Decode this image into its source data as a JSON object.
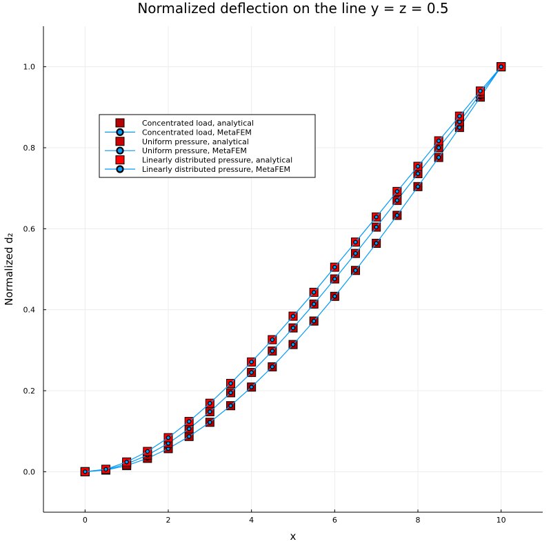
{
  "chart_data": {
    "type": "scatter",
    "title": "Normalized deflection on the line y = z = 0.5",
    "xlabel": "x",
    "ylabel": "Normalized d₂",
    "xlim": [
      -1,
      11
    ],
    "ylim": [
      -0.1,
      1.1
    ],
    "x_ticks": [
      0,
      2,
      4,
      6,
      8,
      10
    ],
    "y_ticks": [
      0.0,
      0.2,
      0.4,
      0.6,
      0.8,
      1.0
    ],
    "x_tick_labels": [
      "0",
      "2",
      "4",
      "6",
      "8",
      "10"
    ],
    "y_tick_labels": [
      "0.0",
      "0.2",
      "0.4",
      "0.6",
      "0.8",
      "1.0"
    ],
    "grid": true,
    "legend_position": "top-left",
    "x": [
      0,
      0.5,
      1,
      1.5,
      2,
      2.5,
      3,
      3.5,
      4,
      4.5,
      5,
      5.5,
      6,
      6.5,
      7,
      7.5,
      8,
      8.5,
      9,
      9.5,
      10
    ],
    "series": [
      {
        "name": "Concentrated load, analytical",
        "marker": "square",
        "color": "#b40000",
        "line": false,
        "values": [
          0.0,
          0.004,
          0.015,
          0.033,
          0.057,
          0.087,
          0.122,
          0.163,
          0.209,
          0.259,
          0.314,
          0.372,
          0.433,
          0.497,
          0.564,
          0.633,
          0.704,
          0.776,
          0.85,
          0.925,
          1.0
        ]
      },
      {
        "name": "Concentrated load, MetaFEM",
        "marker": "circle",
        "color": "#009af9",
        "line": true,
        "values": [
          0.0,
          0.004,
          0.015,
          0.033,
          0.057,
          0.087,
          0.122,
          0.163,
          0.209,
          0.259,
          0.314,
          0.372,
          0.433,
          0.497,
          0.564,
          0.633,
          0.704,
          0.776,
          0.85,
          0.925,
          1.0
        ]
      },
      {
        "name": "Uniform pressure, analytical",
        "marker": "square",
        "color": "#c80000",
        "line": false,
        "values": [
          0.0,
          0.005,
          0.019,
          0.041,
          0.07,
          0.106,
          0.148,
          0.195,
          0.245,
          0.298,
          0.355,
          0.414,
          0.476,
          0.539,
          0.604,
          0.67,
          0.736,
          0.8,
          0.864,
          0.933,
          1.0
        ]
      },
      {
        "name": "Uniform pressure, MetaFEM",
        "marker": "circle",
        "color": "#009af9",
        "line": true,
        "values": [
          0.0,
          0.005,
          0.019,
          0.041,
          0.07,
          0.106,
          0.148,
          0.195,
          0.245,
          0.298,
          0.355,
          0.414,
          0.476,
          0.539,
          0.604,
          0.67,
          0.736,
          0.8,
          0.864,
          0.933,
          1.0
        ]
      },
      {
        "name": "Linearly distributed pressure, analytical",
        "marker": "square",
        "color": "#ff0000",
        "line": false,
        "values": [
          0.0,
          0.006,
          0.024,
          0.05,
          0.084,
          0.124,
          0.169,
          0.218,
          0.271,
          0.326,
          0.384,
          0.443,
          0.505,
          0.567,
          0.629,
          0.692,
          0.754,
          0.817,
          0.878,
          0.94,
          1.0
        ]
      },
      {
        "name": "Linearly distributed pressure, MetaFEM",
        "marker": "circle",
        "color": "#009af9",
        "line": true,
        "values": [
          0.0,
          0.006,
          0.024,
          0.05,
          0.084,
          0.124,
          0.169,
          0.218,
          0.271,
          0.326,
          0.384,
          0.443,
          0.505,
          0.567,
          0.629,
          0.692,
          0.754,
          0.817,
          0.878,
          0.94,
          1.0
        ]
      }
    ]
  }
}
